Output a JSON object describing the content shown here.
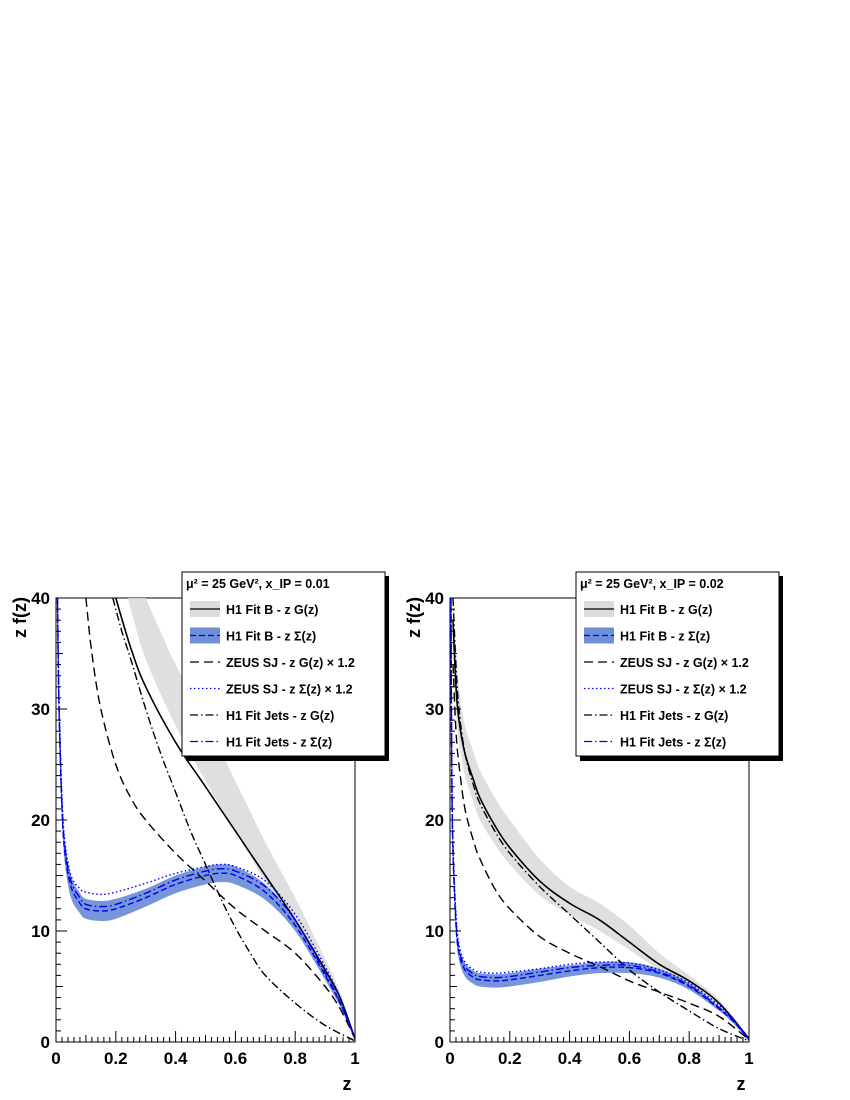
{
  "chart_data": [
    {
      "type": "line",
      "xlabel": "z",
      "ylabel": "z f(z)",
      "xlim": [
        0,
        1
      ],
      "ylim": [
        0,
        40
      ],
      "x_ticks": [
        "0",
        "0.2",
        "0.4",
        "0.6",
        "0.8",
        "1"
      ],
      "y_ticks": [
        "0",
        "10",
        "20",
        "30",
        "40"
      ],
      "legend": {
        "header": "μ² = 25 GeV², x_IP = 0.01",
        "placement": "top-right",
        "entries": [
          "H1 Fit B - z G(z)",
          "H1 Fit B - z Σ(z)",
          "ZEUS SJ - z G(z) × 1.2",
          "ZEUS SJ - z Σ(z) × 1.2",
          "H1 Fit Jets - z G(z)",
          "H1 Fit Jets - z Σ(z)"
        ]
      },
      "series": [
        {
          "name": "H1 Fit B - z G(z)",
          "style": "solid",
          "color": "#000000",
          "x": [
            0.2,
            0.25,
            0.3,
            0.4,
            0.5,
            0.6,
            0.7,
            0.8,
            0.9,
            0.95,
            1.0
          ],
          "y": [
            40.0,
            35.5,
            32.0,
            27.0,
            23.0,
            19.0,
            15.0,
            11.0,
            6.5,
            4.0,
            0.3
          ],
          "band_low": [
            44.0,
            39.0,
            34.5,
            28.5,
            23.5,
            19.0,
            14.5,
            10.5,
            6.0,
            3.7,
            0.2
          ],
          "band_high": [
            46.0,
            43.0,
            40.0,
            34.0,
            29.0,
            23.5,
            18.0,
            13.0,
            7.5,
            4.5,
            0.4
          ],
          "band_color": "#dcdcdc"
        },
        {
          "name": "H1 Fit B - z Σ(z)",
          "style": "dashed",
          "color": "#0000ee",
          "x": [
            0.005,
            0.01,
            0.02,
            0.03,
            0.05,
            0.08,
            0.1,
            0.15,
            0.2,
            0.3,
            0.4,
            0.5,
            0.55,
            0.6,
            0.7,
            0.8,
            0.9,
            0.95,
            1.0
          ],
          "y": [
            40.0,
            30.0,
            21.0,
            17.0,
            14.0,
            12.5,
            12.0,
            11.8,
            12.0,
            13.0,
            14.2,
            15.0,
            15.2,
            15.0,
            13.5,
            10.5,
            6.0,
            3.5,
            0.3
          ],
          "band_low": [
            38.0,
            28.5,
            20.0,
            16.0,
            13.0,
            11.6,
            11.1,
            10.9,
            11.1,
            12.2,
            13.4,
            14.2,
            14.4,
            14.2,
            12.8,
            10.0,
            5.6,
            3.2,
            0.2
          ],
          "band_high": [
            42.0,
            31.5,
            22.0,
            18.0,
            15.0,
            13.4,
            12.9,
            12.7,
            12.9,
            13.8,
            15.0,
            15.8,
            16.0,
            15.8,
            14.2,
            11.0,
            6.4,
            3.8,
            0.4
          ],
          "band_color": "#6f8fd8"
        },
        {
          "name": "ZEUS SJ - z G(z) × 1.2",
          "style": "dashed-long",
          "color": "#000000",
          "x": [
            0.1,
            0.12,
            0.15,
            0.2,
            0.25,
            0.3,
            0.4,
            0.5,
            0.6,
            0.7,
            0.8,
            0.9,
            0.95,
            1.0
          ],
          "y": [
            40.0,
            35.0,
            30.0,
            25.0,
            22.0,
            20.0,
            17.0,
            14.5,
            12.0,
            10.0,
            8.0,
            5.0,
            3.0,
            0.3
          ]
        },
        {
          "name": "ZEUS SJ - z Σ(z) × 1.2",
          "style": "dotted",
          "color": "#0000ee",
          "x": [
            0.005,
            0.01,
            0.02,
            0.03,
            0.05,
            0.08,
            0.1,
            0.15,
            0.2,
            0.3,
            0.4,
            0.5,
            0.55,
            0.6,
            0.7,
            0.8,
            0.9,
            0.95,
            1.0
          ],
          "y": [
            40.0,
            31.0,
            22.0,
            18.0,
            15.0,
            13.8,
            13.5,
            13.3,
            13.5,
            14.3,
            15.2,
            15.8,
            16.0,
            15.8,
            14.5,
            11.5,
            6.8,
            4.0,
            0.3
          ]
        },
        {
          "name": "H1 Fit Jets - z G(z)",
          "style": "dash-dot",
          "color": "#000000",
          "x": [
            0.19,
            0.22,
            0.25,
            0.3,
            0.35,
            0.4,
            0.45,
            0.5,
            0.55,
            0.6,
            0.65,
            0.7,
            0.8,
            0.9,
            1.0
          ],
          "y": [
            40.0,
            37.0,
            34.5,
            30.0,
            26.0,
            22.5,
            19.0,
            16.0,
            13.0,
            10.3,
            8.0,
            6.0,
            3.5,
            1.5,
            0.1
          ]
        },
        {
          "name": "H1 Fit Jets - z Σ(z)",
          "style": "dash-dot",
          "color": "#0000ee",
          "x": [
            0.005,
            0.01,
            0.02,
            0.03,
            0.05,
            0.08,
            0.1,
            0.15,
            0.2,
            0.3,
            0.4,
            0.5,
            0.55,
            0.6,
            0.7,
            0.8,
            0.9,
            0.95,
            1.0
          ],
          "y": [
            40.0,
            30.5,
            21.5,
            17.5,
            14.5,
            13.0,
            12.4,
            12.2,
            12.4,
            13.4,
            14.6,
            15.4,
            15.6,
            15.4,
            14.0,
            11.0,
            6.2,
            3.6,
            0.3
          ]
        }
      ]
    },
    {
      "type": "line",
      "xlabel": "z",
      "ylabel": "z f(z)",
      "xlim": [
        0,
        1
      ],
      "ylim": [
        0,
        40
      ],
      "x_ticks": [
        "0",
        "0.2",
        "0.4",
        "0.6",
        "0.8",
        "1"
      ],
      "y_ticks": [
        "0",
        "10",
        "20",
        "30",
        "40"
      ],
      "legend": {
        "header": "μ² = 25 GeV², x_IP = 0.02",
        "placement": "top-right",
        "entries": [
          "H1 Fit B - z G(z)",
          "H1 Fit B - z Σ(z)",
          "ZEUS SJ - z G(z) × 1.2",
          "ZEUS SJ - z Σ(z) × 1.2",
          "H1 Fit Jets - z G(z)",
          "H1 Fit Jets - z Σ(z)"
        ]
      },
      "series": [
        {
          "name": "H1 Fit B - z G(z)",
          "style": "solid",
          "color": "#000000",
          "x": [
            0.01,
            0.02,
            0.03,
            0.05,
            0.08,
            0.1,
            0.15,
            0.2,
            0.3,
            0.4,
            0.5,
            0.6,
            0.7,
            0.8,
            0.9,
            1.0
          ],
          "y": [
            38.0,
            32.0,
            29.0,
            26.0,
            23.5,
            22.0,
            19.5,
            17.5,
            14.5,
            12.5,
            11.0,
            9.0,
            7.0,
            5.5,
            3.5,
            0.3
          ],
          "band_low": [
            36.0,
            30.0,
            27.0,
            24.0,
            21.5,
            20.0,
            17.8,
            16.0,
            13.2,
            11.5,
            10.0,
            8.3,
            6.5,
            5.0,
            3.2,
            0.2
          ],
          "band_high": [
            40.0,
            35.0,
            32.0,
            28.5,
            26.0,
            24.5,
            22.0,
            20.0,
            16.5,
            14.0,
            12.5,
            10.5,
            8.0,
            6.0,
            3.8,
            0.4
          ],
          "band_color": "#dcdcdc"
        },
        {
          "name": "H1 Fit B - z Σ(z)",
          "style": "dashed",
          "color": "#0000ee",
          "x": [
            0.003,
            0.006,
            0.01,
            0.02,
            0.03,
            0.05,
            0.08,
            0.1,
            0.15,
            0.2,
            0.3,
            0.4,
            0.5,
            0.6,
            0.7,
            0.8,
            0.9,
            0.95,
            1.0
          ],
          "y": [
            40.0,
            24.0,
            17.0,
            10.5,
            8.0,
            6.5,
            5.8,
            5.6,
            5.5,
            5.6,
            6.0,
            6.4,
            6.7,
            6.7,
            6.2,
            5.0,
            3.0,
            1.8,
            0.2
          ],
          "band_low": [
            38.0,
            23.0,
            16.2,
            9.8,
            7.4,
            5.9,
            5.2,
            5.0,
            4.9,
            5.0,
            5.4,
            5.9,
            6.2,
            6.2,
            5.8,
            4.7,
            2.8,
            1.6,
            0.1
          ],
          "band_high": [
            42.0,
            25.0,
            17.8,
            11.2,
            8.6,
            7.1,
            6.4,
            6.2,
            6.1,
            6.2,
            6.6,
            6.9,
            7.2,
            7.2,
            6.6,
            5.3,
            3.2,
            2.0,
            0.3
          ],
          "band_color": "#6f8fd8"
        },
        {
          "name": "ZEUS SJ - z G(z) × 1.2",
          "style": "dashed-long",
          "color": "#000000",
          "x": [
            0.01,
            0.02,
            0.03,
            0.05,
            0.08,
            0.1,
            0.15,
            0.2,
            0.3,
            0.4,
            0.5,
            0.6,
            0.7,
            0.8,
            0.9,
            1.0
          ],
          "y": [
            34.0,
            28.0,
            25.0,
            21.0,
            18.0,
            16.5,
            13.8,
            12.0,
            9.5,
            8.0,
            6.8,
            5.5,
            4.5,
            3.5,
            2.3,
            0.2
          ]
        },
        {
          "name": "ZEUS SJ - z Σ(z) × 1.2",
          "style": "dotted",
          "color": "#0000ee",
          "x": [
            0.003,
            0.006,
            0.01,
            0.02,
            0.03,
            0.05,
            0.08,
            0.1,
            0.15,
            0.2,
            0.3,
            0.4,
            0.5,
            0.6,
            0.7,
            0.8,
            0.9,
            0.95,
            1.0
          ],
          "y": [
            40.0,
            25.0,
            18.0,
            11.5,
            8.8,
            7.2,
            6.5,
            6.3,
            6.2,
            6.3,
            6.6,
            7.0,
            7.2,
            7.1,
            6.5,
            5.3,
            3.3,
            2.0,
            0.2
          ]
        },
        {
          "name": "H1 Fit Jets - z G(z)",
          "style": "dash-dot",
          "color": "#000000",
          "x": [
            0.01,
            0.02,
            0.03,
            0.05,
            0.08,
            0.1,
            0.15,
            0.2,
            0.3,
            0.4,
            0.5,
            0.6,
            0.7,
            0.8,
            0.9,
            1.0
          ],
          "y": [
            40.0,
            34.0,
            30.0,
            26.0,
            23.0,
            21.5,
            19.0,
            17.0,
            14.0,
            11.5,
            9.0,
            6.5,
            4.5,
            2.8,
            1.2,
            0.1
          ]
        },
        {
          "name": "H1 Fit Jets - z Σ(z)",
          "style": "dash-dot",
          "color": "#0000ee",
          "x": [
            0.003,
            0.006,
            0.01,
            0.02,
            0.03,
            0.05,
            0.08,
            0.1,
            0.15,
            0.2,
            0.3,
            0.4,
            0.5,
            0.6,
            0.7,
            0.8,
            0.9,
            0.95,
            1.0
          ],
          "y": [
            40.0,
            24.5,
            17.5,
            11.0,
            8.4,
            6.8,
            6.1,
            5.9,
            5.8,
            5.9,
            6.3,
            6.7,
            6.9,
            6.9,
            6.3,
            5.1,
            3.1,
            1.9,
            0.2
          ]
        }
      ]
    }
  ]
}
